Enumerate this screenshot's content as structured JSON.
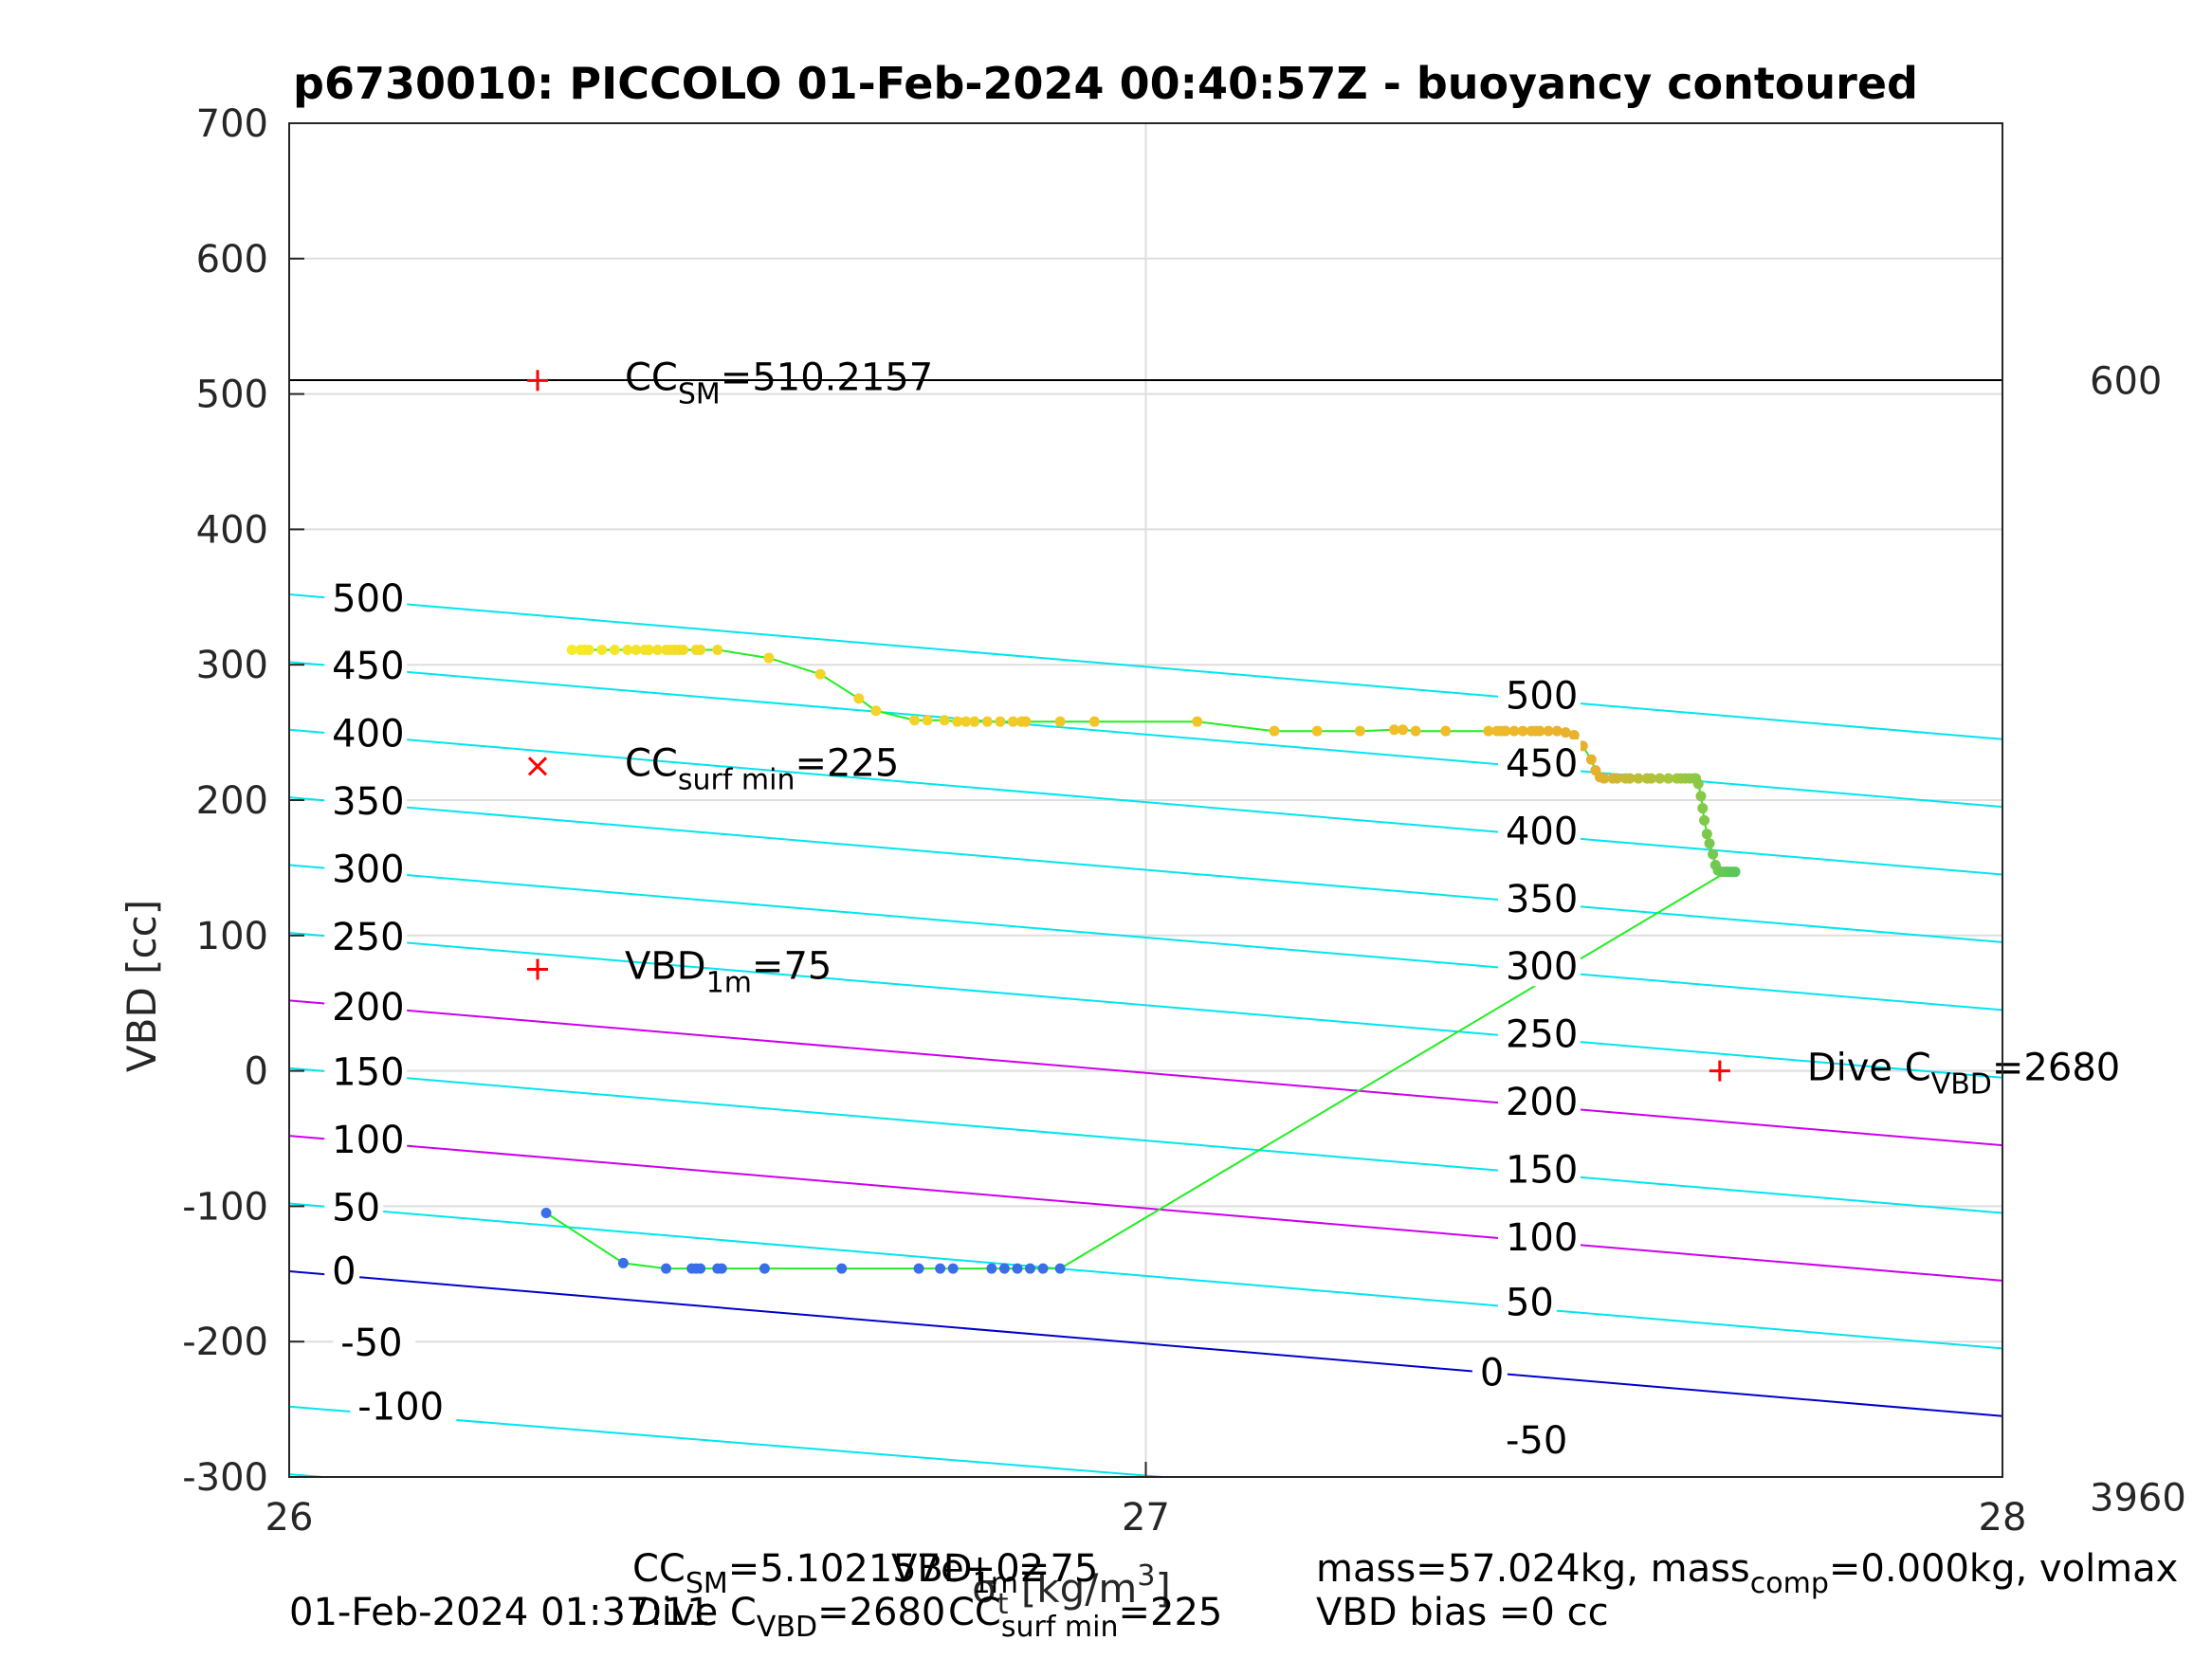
{
  "chart_data": {
    "type": "line",
    "title": "p6730010: PICCOLO 01-Feb-2024 00:40:57Z - buoyancy contoured",
    "xlabel_parts": [
      "σ",
      "t",
      " [kg/m",
      "3",
      "]"
    ],
    "ylabel": "VBD [cc]",
    "xlim": [
      26,
      28
    ],
    "ylim": [
      -300,
      700
    ],
    "xticks": [
      "26",
      "27",
      "28"
    ],
    "yticks": [
      "-300",
      "-200",
      "-100",
      "0",
      "100",
      "200",
      "300",
      "400",
      "500",
      "600",
      "700"
    ],
    "grid": true,
    "right_labels": [
      {
        "text": "600",
        "y": 510
      },
      {
        "text": "3960",
        "y": -315
      }
    ],
    "contour_lines": [
      {
        "level": -100,
        "y0": -298,
        "y1": -400,
        "color": "#00e5ee"
      },
      {
        "level": -50,
        "y0": -248,
        "y1": -350,
        "color": "#00e5ee"
      },
      {
        "level": 0,
        "y0": -148,
        "y1": -255,
        "color": "#0000cd"
      },
      {
        "level": 50,
        "y0": -98,
        "y1": -205,
        "color": "#00e5ee"
      },
      {
        "level": 100,
        "y0": -48,
        "y1": -155,
        "color": "#cc00ee"
      },
      {
        "level": 150,
        "y0": 2,
        "y1": -105,
        "color": "#00e5ee"
      },
      {
        "level": 200,
        "y0": 52,
        "y1": -55,
        "color": "#cc00ee"
      },
      {
        "level": 250,
        "y0": 102,
        "y1": -5,
        "color": "#00e5ee"
      },
      {
        "level": 300,
        "y0": 152,
        "y1": 45,
        "color": "#00e5ee"
      },
      {
        "level": 350,
        "y0": 202,
        "y1": 95,
        "color": "#00e5ee"
      },
      {
        "level": 400,
        "y0": 252,
        "y1": 145,
        "color": "#00e5ee"
      },
      {
        "level": 450,
        "y0": 302,
        "y1": 195,
        "color": "#00e5ee"
      },
      {
        "level": 500,
        "y0": 352,
        "y1": 245,
        "color": "#00e5ee"
      }
    ],
    "contour_labels_left": [
      {
        "text": "500",
        "x": 26.05,
        "y": 350
      },
      {
        "text": "450",
        "x": 26.05,
        "y": 300
      },
      {
        "text": "400",
        "x": 26.05,
        "y": 250
      },
      {
        "text": "350",
        "x": 26.05,
        "y": 200
      },
      {
        "text": "300",
        "x": 26.05,
        "y": 150
      },
      {
        "text": "250",
        "x": 26.05,
        "y": 100
      },
      {
        "text": "200",
        "x": 26.05,
        "y": 48
      },
      {
        "text": "150",
        "x": 26.05,
        "y": 0
      },
      {
        "text": "100",
        "x": 26.05,
        "y": -50
      },
      {
        "text": "50",
        "x": 26.05,
        "y": -100
      },
      {
        "text": "0",
        "x": 26.05,
        "y": -147
      },
      {
        "text": "-50",
        "x": 26.06,
        "y": -200
      },
      {
        "text": "-100",
        "x": 26.08,
        "y": -247
      }
    ],
    "contour_labels_right": [
      {
        "text": "500",
        "x": 27.42,
        "y": 278
      },
      {
        "text": "450",
        "x": 27.42,
        "y": 228
      },
      {
        "text": "400",
        "x": 27.42,
        "y": 178
      },
      {
        "text": "350",
        "x": 27.42,
        "y": 128
      },
      {
        "text": "300",
        "x": 27.42,
        "y": 78
      },
      {
        "text": "250",
        "x": 27.42,
        "y": 28
      },
      {
        "text": "200",
        "x": 27.42,
        "y": -22
      },
      {
        "text": "150",
        "x": 27.42,
        "y": -72
      },
      {
        "text": "100",
        "x": 27.42,
        "y": -122
      },
      {
        "text": "50",
        "x": 27.42,
        "y": -170
      },
      {
        "text": "0",
        "x": 27.39,
        "y": -222
      },
      {
        "text": "-50",
        "x": 27.42,
        "y": -272
      }
    ],
    "reference_line": {
      "y": 510.2157
    },
    "markers": [
      {
        "symbol": "+",
        "x": 26.29,
        "y": 510,
        "text": "CC",
        "sub": "SM",
        "tail": "=510.2157"
      },
      {
        "symbol": "x",
        "x": 26.29,
        "y": 225,
        "text": "CC",
        "sub": "surf min",
        "tail": "=225"
      },
      {
        "symbol": "+",
        "x": 26.29,
        "y": 75,
        "text": "VBD",
        "sub": "1m",
        "tail": "=75"
      },
      {
        "symbol": "+",
        "x": 27.67,
        "y": 0,
        "text": "Dive C",
        "sub": "VBD",
        "tail": "=2680"
      }
    ],
    "series": [
      {
        "name": "descent",
        "x": [
          26.33,
          26.34,
          26.345,
          26.35,
          26.365,
          26.38,
          26.395,
          26.405,
          26.415,
          26.42,
          26.43,
          26.44,
          26.445,
          26.45,
          26.455,
          26.46,
          26.475,
          26.48,
          26.5,
          26.56,
          26.62,
          26.665,
          26.685,
          26.73,
          26.745,
          26.765,
          26.78,
          26.79,
          26.8,
          26.815,
          26.83,
          26.845,
          26.855,
          26.86,
          26.9,
          26.94,
          27.06,
          27.15,
          27.2,
          27.25,
          27.29,
          27.3,
          27.315,
          27.35,
          27.4,
          27.41,
          27.415,
          27.42,
          27.43,
          27.44,
          27.45,
          27.455,
          27.46,
          27.47,
          27.48,
          27.49,
          27.5,
          27.51,
          27.52,
          27.525,
          27.53,
          27.535,
          27.545,
          27.55,
          27.56,
          27.565,
          27.575,
          27.585,
          27.59,
          27.6,
          27.61,
          27.62,
          27.625,
          27.63,
          27.635,
          27.64,
          27.642,
          27.645,
          27.648,
          27.65,
          27.652,
          27.655,
          27.658,
          27.662,
          27.665,
          27.668,
          27.672,
          27.675,
          27.678,
          27.68,
          27.684,
          27.688
        ],
        "y": [
          311,
          311,
          311,
          311,
          311,
          311,
          311,
          311,
          311,
          311,
          311,
          311,
          311,
          311,
          311,
          311,
          311,
          311,
          311,
          305,
          293,
          275,
          266,
          259,
          259,
          259,
          258,
          258,
          258,
          258,
          258,
          258,
          258,
          258,
          258,
          258,
          258,
          251,
          251,
          251,
          252,
          252,
          251,
          251,
          251,
          251,
          251,
          251,
          251,
          251,
          251,
          251,
          251,
          251,
          251,
          250,
          248,
          240,
          230,
          222,
          217,
          216,
          216,
          216,
          216,
          216,
          216,
          216,
          216,
          216,
          216,
          216,
          216,
          216,
          216,
          216,
          216,
          212,
          203,
          194,
          185,
          175,
          168,
          160,
          152,
          148,
          147,
          147,
          147,
          147,
          147,
          147
        ]
      },
      {
        "name": "ascent",
        "x": [
          26.3,
          26.39,
          26.44,
          26.47,
          26.475,
          26.48,
          26.5,
          26.505,
          26.555,
          26.645,
          26.735,
          26.76,
          26.775,
          26.82,
          26.835,
          26.85,
          26.865,
          26.88,
          26.9
        ],
        "y": [
          -105,
          -142,
          -146,
          -146,
          -146,
          -146,
          -146,
          -146,
          -146,
          -146,
          -146,
          -146,
          -146,
          -146,
          -146,
          -146,
          -146,
          -146,
          -146
        ]
      }
    ],
    "connector": {
      "x": [
        26.9,
        27.67
      ],
      "y": [
        -146,
        144
      ]
    }
  },
  "footer": {
    "line1_left_a": "CC",
    "line1_left_a_sub": "SM",
    "line1_left_a_tail": "=5.102157e+02",
    "line1_left_b": "VBD",
    "line1_left_b_sub": "1m",
    "line1_left_b_tail": "=75",
    "line1_right_a": "mass=57.024kg, mass",
    "line1_right_a_sub": "comp",
    "line1_right_a_tail": "=0.000kg, volmax",
    "line2_date": "01-Feb-2024 01:37:11",
    "line2_mid_a": "Dive C",
    "line2_mid_a_sub": "VBD",
    "line2_mid_a_tail": "=2680",
    "line2_mid_b": "CC",
    "line2_mid_b_sub": "surf min",
    "line2_mid_b_tail": "=225",
    "line2_right": "VBD bias =0 cc"
  },
  "colors": {
    "cyan": "#00e5ee",
    "magenta": "#cc00ee",
    "blue": "#0000cd",
    "trace": "#22ee22",
    "marker_red": "#ff0000"
  }
}
